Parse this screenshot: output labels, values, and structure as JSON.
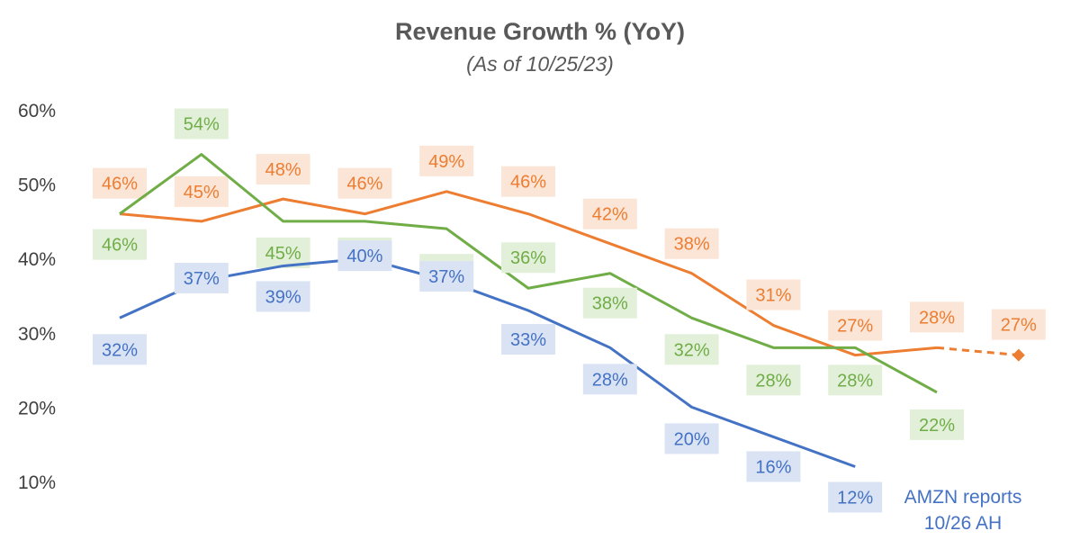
{
  "chart_data": {
    "type": "line",
    "title": "Revenue Growth % (YoY)",
    "subtitle": "(As of 10/25/23)",
    "ylim": [
      10,
      60
    ],
    "yticks": [
      "10%",
      "20%",
      "30%",
      "40%",
      "50%",
      "60%"
    ],
    "grid": false,
    "legend": "none",
    "series": [
      {
        "color": "#ed7d31",
        "label_bg": "#fbe5d6",
        "values": [
          46,
          45,
          48,
          46,
          49,
          46,
          42,
          38,
          31,
          27,
          28,
          27
        ],
        "labels": [
          "46%",
          "45%",
          "48%",
          "46%",
          "49%",
          "46%",
          "42%",
          "38%",
          "31%",
          "27%",
          "28%",
          "27%"
        ],
        "projected_from_index": 10
      },
      {
        "color": "#70ad47",
        "label_bg": "#e2f0d9",
        "values": [
          46,
          54,
          45,
          45,
          44,
          36,
          38,
          32,
          28,
          28,
          22
        ],
        "labels": [
          "46%",
          "54%",
          "45%",
          "45%",
          "44%",
          "36%",
          "38%",
          "32%",
          "28%",
          "28%",
          "22%"
        ]
      },
      {
        "color": "#4472c4",
        "label_bg": "#dae3f3",
        "values": [
          32,
          37,
          39,
          40,
          37,
          33,
          28,
          20,
          16,
          12
        ],
        "labels": [
          "32%",
          "37%",
          "39%",
          "40%",
          "37%",
          "33%",
          "28%",
          "20%",
          "16%",
          "12%"
        ]
      }
    ],
    "annotation": [
      "AMZN reports",
      "10/26 AH"
    ]
  }
}
